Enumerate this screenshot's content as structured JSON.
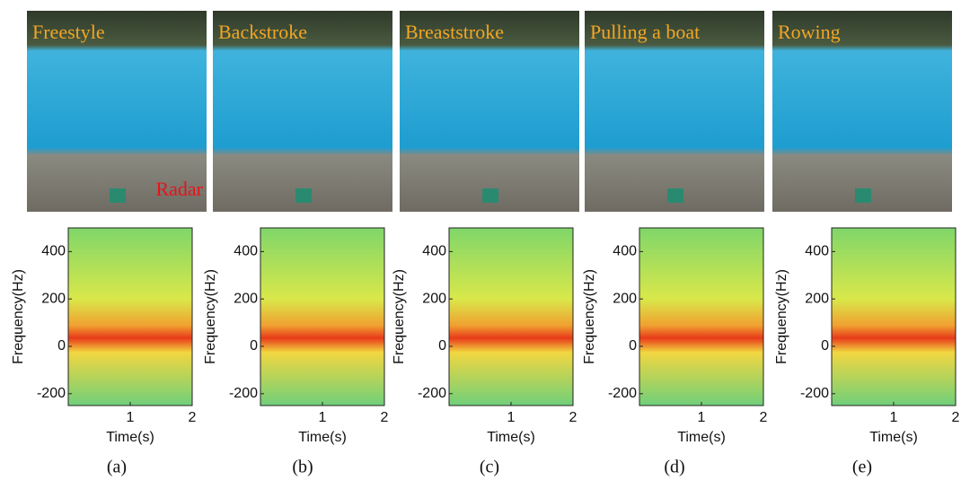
{
  "panels": [
    {
      "photo_label": "Freestyle",
      "annotation": "Radar",
      "ylabel": "Frequency(Hz)",
      "xlabel": "Time(s)",
      "ylim": [
        -250,
        500
      ],
      "yticks": [
        400,
        200,
        0,
        -200
      ],
      "xlim": [
        0,
        2
      ],
      "xticks": [
        1,
        2
      ],
      "caption": "(a)"
    },
    {
      "photo_label": "Backstroke",
      "ylabel": "Frequency(Hz)",
      "xlabel": "Time(s)",
      "ylim": [
        -250,
        500
      ],
      "yticks": [
        400,
        200,
        0,
        -200
      ],
      "xlim": [
        0,
        2
      ],
      "xticks": [
        1,
        2
      ],
      "caption": "(b)"
    },
    {
      "photo_label": "Breaststroke",
      "ylabel": "Frequency(Hz)",
      "xlabel": "Time(s)",
      "ylim": [
        -250,
        500
      ],
      "yticks": [
        400,
        200,
        0,
        -200
      ],
      "xlim": [
        0,
        2
      ],
      "xticks": [
        1,
        2
      ],
      "caption": "(c)"
    },
    {
      "photo_label": "Pulling a boat",
      "ylabel": "Frequency(Hz)",
      "xlabel": "Time(s)",
      "ylim": [
        -250,
        500
      ],
      "yticks": [
        400,
        200,
        0,
        -200
      ],
      "xlim": [
        0,
        2
      ],
      "xticks": [
        1,
        2
      ],
      "caption": "(d)"
    },
    {
      "photo_label": "Rowing",
      "ylabel": "Frequency(Hz)",
      "xlabel": "Time(s)",
      "ylim": [
        -250,
        500
      ],
      "yticks": [
        400,
        200,
        0,
        -200
      ],
      "xlim": [
        0,
        2
      ],
      "xticks": [
        1,
        2
      ],
      "caption": "(e)"
    }
  ]
}
